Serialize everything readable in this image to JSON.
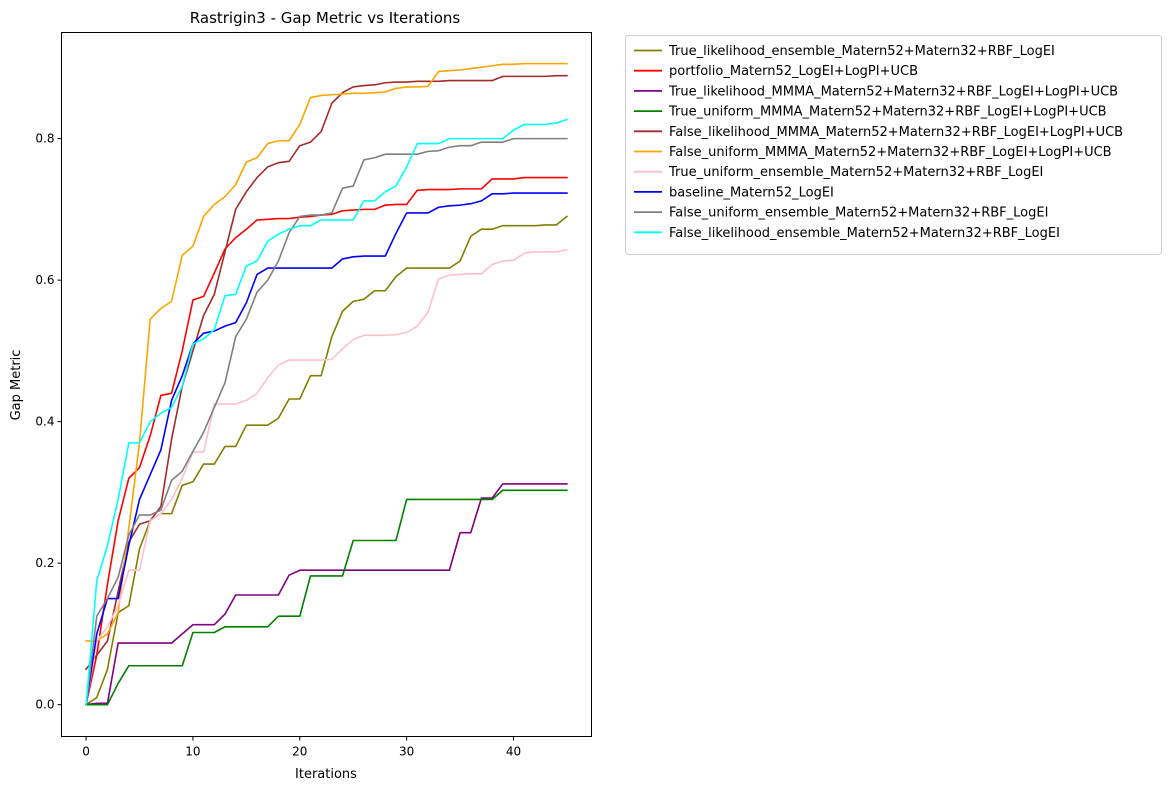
{
  "chart_data": {
    "type": "line",
    "title": "Rastrigin3 - Gap Metric vs Iterations",
    "xlabel": "Iterations",
    "ylabel": "Gap Metric",
    "xlim": [
      -2.3,
      47.3
    ],
    "ylim": [
      -0.045,
      0.95
    ],
    "xticks": [
      0,
      10,
      20,
      30,
      40
    ],
    "yticks": [
      0.0,
      0.2,
      0.4,
      0.6,
      0.8
    ],
    "ytick_labels": [
      "0.0",
      "0.2",
      "0.4",
      "0.6",
      "0.8"
    ],
    "xtick_labels": [
      "0",
      "10",
      "20",
      "30",
      "40"
    ],
    "grid": false,
    "legend_position": "outside-upper-right",
    "x": [
      0,
      1,
      2,
      3,
      4,
      5,
      6,
      7,
      8,
      9,
      10,
      11,
      12,
      13,
      14,
      15,
      16,
      17,
      18,
      19,
      20,
      21,
      22,
      23,
      24,
      25,
      26,
      27,
      28,
      29,
      30,
      31,
      32,
      33,
      34,
      35,
      36,
      37,
      38,
      39,
      40,
      41,
      42,
      43,
      44,
      45
    ],
    "series": [
      {
        "name": "True_likelihood_ensemble_Matern52+Matern32+RBF_LogEI",
        "color": "#808000",
        "values": [
          0.0,
          0.01,
          0.05,
          0.13,
          0.14,
          0.22,
          0.26,
          0.27,
          0.27,
          0.31,
          0.315,
          0.34,
          0.34,
          0.365,
          0.365,
          0.395,
          0.395,
          0.395,
          0.405,
          0.432,
          0.432,
          0.465,
          0.465,
          0.52,
          0.556,
          0.57,
          0.573,
          0.585,
          0.585,
          0.605,
          0.617,
          0.617,
          0.617,
          0.617,
          0.617,
          0.627,
          0.662,
          0.672,
          0.672,
          0.677,
          0.677,
          0.677,
          0.677,
          0.678,
          0.678,
          0.69
        ]
      },
      {
        "name": "portfolio_Matern52_LogEI+LogPI+UCB",
        "color": "#ff0000",
        "values": [
          0.0,
          0.07,
          0.17,
          0.26,
          0.32,
          0.335,
          0.38,
          0.437,
          0.44,
          0.5,
          0.572,
          0.577,
          0.61,
          0.644,
          0.66,
          0.672,
          0.685,
          0.686,
          0.687,
          0.687,
          0.689,
          0.69,
          0.692,
          0.693,
          0.698,
          0.699,
          0.7,
          0.7,
          0.706,
          0.707,
          0.707,
          0.727,
          0.728,
          0.728,
          0.728,
          0.729,
          0.729,
          0.729,
          0.743,
          0.743,
          0.743,
          0.745,
          0.745,
          0.745,
          0.745,
          0.745
        ]
      },
      {
        "name": "True_likelihood_MMMA_Matern52+Matern32+RBF_LogEI+LogPI+UCB",
        "color": "#800080",
        "values": [
          0.0,
          0.002,
          0.002,
          0.087,
          0.087,
          0.087,
          0.087,
          0.087,
          0.087,
          0.1,
          0.113,
          0.113,
          0.113,
          0.128,
          0.155,
          0.155,
          0.155,
          0.155,
          0.155,
          0.183,
          0.19,
          0.19,
          0.19,
          0.19,
          0.19,
          0.19,
          0.19,
          0.19,
          0.19,
          0.19,
          0.19,
          0.19,
          0.19,
          0.19,
          0.19,
          0.243,
          0.243,
          0.292,
          0.292,
          0.312,
          0.312,
          0.312,
          0.312,
          0.312,
          0.312,
          0.312
        ]
      },
      {
        "name": "True_uniform_MMMA_Matern52+Matern32+RBF_LogEI+LogPI+UCB",
        "color": "#008000",
        "values": [
          0.0,
          0.0,
          0.0,
          0.03,
          0.055,
          0.055,
          0.055,
          0.055,
          0.055,
          0.055,
          0.102,
          0.102,
          0.102,
          0.11,
          0.11,
          0.11,
          0.11,
          0.11,
          0.125,
          0.125,
          0.125,
          0.182,
          0.182,
          0.182,
          0.182,
          0.232,
          0.232,
          0.232,
          0.232,
          0.232,
          0.29,
          0.29,
          0.29,
          0.29,
          0.29,
          0.29,
          0.29,
          0.29,
          0.29,
          0.303,
          0.303,
          0.303,
          0.303,
          0.303,
          0.303,
          0.303
        ]
      },
      {
        "name": "False_likelihood_MMMA_Matern52+Matern32+RBF_LogEI+LogPI+UCB",
        "color": "#a52a2a",
        "values": [
          0.05,
          0.07,
          0.09,
          0.16,
          0.23,
          0.255,
          0.26,
          0.28,
          0.375,
          0.45,
          0.5,
          0.55,
          0.58,
          0.64,
          0.7,
          0.725,
          0.745,
          0.76,
          0.766,
          0.768,
          0.79,
          0.795,
          0.81,
          0.85,
          0.865,
          0.873,
          0.875,
          0.876,
          0.879,
          0.88,
          0.88,
          0.881,
          0.881,
          0.881,
          0.882,
          0.882,
          0.882,
          0.882,
          0.882,
          0.888,
          0.888,
          0.888,
          0.888,
          0.888,
          0.889,
          0.889
        ]
      },
      {
        "name": "False_uniform_MMMA_Matern52+Matern32+RBF_LogEI+LogPI+UCB",
        "color": "#ffa500",
        "values": [
          0.09,
          0.09,
          0.1,
          0.13,
          0.25,
          0.37,
          0.545,
          0.56,
          0.57,
          0.635,
          0.648,
          0.69,
          0.707,
          0.718,
          0.735,
          0.767,
          0.773,
          0.793,
          0.797,
          0.797,
          0.82,
          0.858,
          0.861,
          0.862,
          0.863,
          0.864,
          0.864,
          0.865,
          0.866,
          0.871,
          0.873,
          0.873,
          0.874,
          0.895,
          0.896,
          0.897,
          0.899,
          0.901,
          0.903,
          0.905,
          0.905,
          0.906,
          0.906,
          0.906,
          0.906,
          0.906
        ]
      },
      {
        "name": "True_uniform_ensemble_Matern52+Matern32+RBF_LogEI",
        "color": "#ffc0cb",
        "values": [
          0.0,
          0.09,
          0.11,
          0.14,
          0.19,
          0.19,
          0.26,
          0.27,
          0.29,
          0.32,
          0.357,
          0.357,
          0.425,
          0.425,
          0.425,
          0.43,
          0.44,
          0.462,
          0.48,
          0.487,
          0.487,
          0.487,
          0.487,
          0.488,
          0.503,
          0.516,
          0.522,
          0.522,
          0.522,
          0.523,
          0.526,
          0.535,
          0.555,
          0.602,
          0.607,
          0.608,
          0.609,
          0.609,
          0.622,
          0.627,
          0.628,
          0.638,
          0.64,
          0.64,
          0.64,
          0.643
        ]
      },
      {
        "name": "baseline_Matern52_LogEI",
        "color": "#0000ff",
        "values": [
          0.0,
          0.1,
          0.15,
          0.15,
          0.225,
          0.29,
          0.325,
          0.36,
          0.43,
          0.465,
          0.51,
          0.525,
          0.528,
          0.535,
          0.54,
          0.568,
          0.608,
          0.617,
          0.617,
          0.617,
          0.617,
          0.617,
          0.617,
          0.617,
          0.63,
          0.633,
          0.634,
          0.634,
          0.634,
          0.666,
          0.695,
          0.695,
          0.695,
          0.703,
          0.705,
          0.706,
          0.708,
          0.712,
          0.722,
          0.722,
          0.723,
          0.723,
          0.723,
          0.723,
          0.723,
          0.723
        ]
      },
      {
        "name": "False_uniform_ensemble_Matern52+Matern32+RBF_LogEI",
        "color": "#808080",
        "values": [
          0.0,
          0.125,
          0.15,
          0.18,
          0.24,
          0.268,
          0.268,
          0.275,
          0.317,
          0.33,
          0.358,
          0.385,
          0.42,
          0.455,
          0.52,
          0.545,
          0.583,
          0.6,
          0.627,
          0.667,
          0.69,
          0.692,
          0.692,
          0.695,
          0.73,
          0.733,
          0.77,
          0.773,
          0.778,
          0.778,
          0.778,
          0.778,
          0.782,
          0.783,
          0.788,
          0.79,
          0.79,
          0.795,
          0.795,
          0.795,
          0.8,
          0.8,
          0.8,
          0.8,
          0.8,
          0.8
        ]
      },
      {
        "name": "False_likelihood_ensemble_Matern52+Matern32+RBF_LogEI",
        "color": "#00ffff",
        "values": [
          0.0,
          0.175,
          0.225,
          0.29,
          0.37,
          0.37,
          0.4,
          0.412,
          0.42,
          0.45,
          0.51,
          0.517,
          0.53,
          0.578,
          0.58,
          0.62,
          0.627,
          0.655,
          0.665,
          0.672,
          0.677,
          0.677,
          0.685,
          0.685,
          0.685,
          0.685,
          0.712,
          0.712,
          0.725,
          0.733,
          0.76,
          0.793,
          0.793,
          0.793,
          0.8,
          0.8,
          0.8,
          0.8,
          0.8,
          0.8,
          0.812,
          0.82,
          0.82,
          0.82,
          0.822,
          0.827
        ]
      }
    ]
  }
}
